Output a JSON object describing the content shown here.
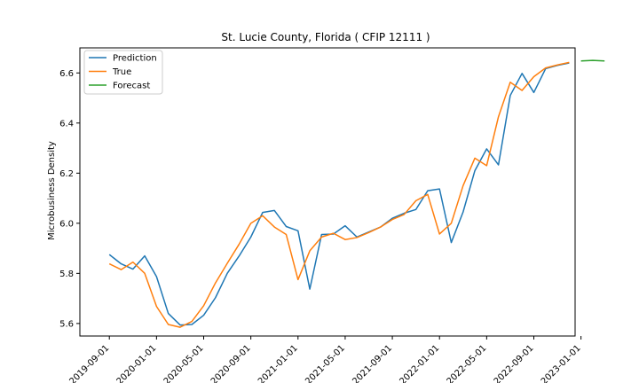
{
  "chart_data": {
    "type": "line",
    "title": "St. Lucie County, Florida ( CFIP 12111 )",
    "xlabel": "",
    "ylabel": "Microbusiness Density",
    "ylim": [
      5.55,
      6.7
    ],
    "yticks": [
      5.6,
      5.8,
      6.0,
      6.2,
      6.4,
      6.6
    ],
    "ytick_labels": [
      "5.6",
      "5.8",
      "6.0",
      "6.2",
      "6.4",
      "6.6"
    ],
    "x_start": "2019-08-01",
    "xlim_months": [
      -1.5,
      40.5
    ],
    "xticks_months": [
      1,
      5,
      9,
      13,
      17,
      21,
      25,
      29,
      33,
      37,
      41
    ],
    "xtick_labels": [
      "2019-09-01",
      "2020-01-01",
      "2020-05-01",
      "2020-09-01",
      "2021-01-01",
      "2021-05-01",
      "2021-09-01",
      "2022-01-01",
      "2022-05-01",
      "2022-09-01",
      "2023-01-01"
    ],
    "legend_position": "upper left",
    "series": [
      {
        "name": "Prediction",
        "color": "#1f77b4",
        "x_month_offset": 1,
        "values": [
          5.875,
          5.838,
          5.817,
          5.87,
          5.787,
          5.64,
          5.594,
          5.596,
          5.633,
          5.703,
          5.8,
          5.869,
          5.945,
          6.043,
          6.051,
          5.987,
          5.97,
          5.737,
          5.955,
          5.957,
          5.99,
          5.945,
          5.965,
          5.985,
          6.02,
          6.04,
          6.055,
          6.13,
          6.137,
          5.923,
          6.045,
          6.21,
          6.297,
          6.233,
          6.51,
          6.598,
          6.522,
          6.617,
          6.63,
          6.64
        ]
      },
      {
        "name": "True",
        "color": "#ff7f0e",
        "x_month_offset": 1,
        "values": [
          5.838,
          5.815,
          5.845,
          5.8,
          5.668,
          5.596,
          5.585,
          5.608,
          5.671,
          5.762,
          5.84,
          5.916,
          6.0,
          6.03,
          5.985,
          5.955,
          5.775,
          5.89,
          5.945,
          5.96,
          5.935,
          5.943,
          5.963,
          5.985,
          6.015,
          6.035,
          6.09,
          6.115,
          5.957,
          6.0,
          6.15,
          6.26,
          6.23,
          6.425,
          6.563,
          6.53,
          6.585,
          6.62,
          6.632,
          6.642
        ]
      },
      {
        "name": "Forecast",
        "color": "#2ca02c",
        "x_month_offset": 41,
        "values": [
          6.648,
          6.65,
          6.648
        ]
      }
    ]
  }
}
